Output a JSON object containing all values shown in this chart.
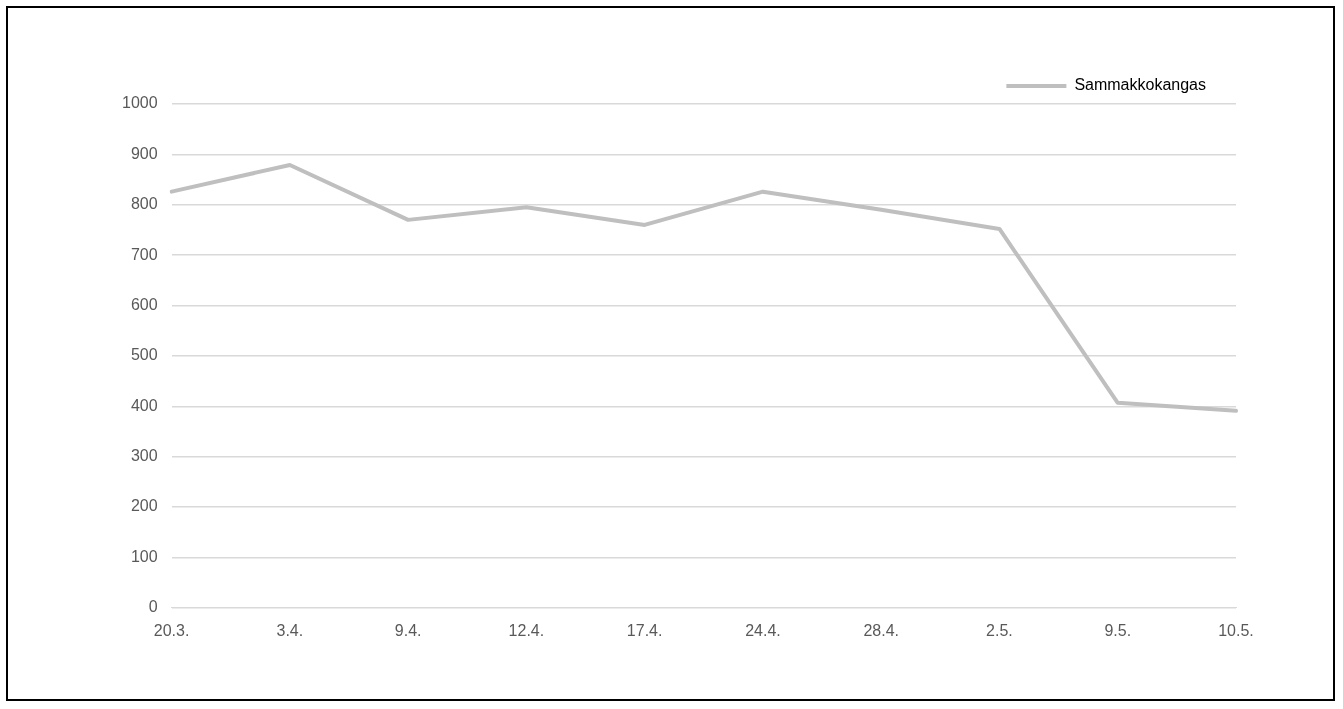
{
  "chart_data": {
    "type": "line",
    "categories": [
      "20.3.",
      "3.4.",
      "9.4.",
      "12.4.",
      "17.4.",
      "24.4.",
      "28.4.",
      "2.5.",
      "9.5.",
      "10.5."
    ],
    "series": [
      {
        "name": "Sammakkokangas",
        "color": "#bfbfbf",
        "values": [
          826,
          879,
          770,
          795,
          760,
          826,
          790,
          752,
          407,
          391
        ]
      }
    ],
    "ylim": [
      0,
      1000
    ],
    "yticks": [
      0,
      100,
      200,
      300,
      400,
      500,
      600,
      700,
      800,
      900,
      1000
    ],
    "grid": "y",
    "legend": "top right",
    "marker": "none",
    "line_style": "solid"
  }
}
